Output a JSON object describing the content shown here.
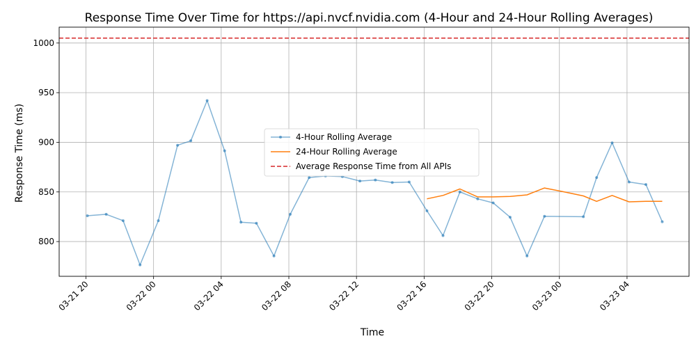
{
  "chart_data": {
    "type": "line",
    "title": "Response Time Over Time for https://api.nvcf.nvidia.com (4-Hour and 24-Hour Rolling Averages)",
    "xlabel": "Time",
    "ylabel": "Response Time (ms)",
    "xlim": [
      "2025-03-21 18:25",
      "2025-03-23 07:40"
    ],
    "ylim": [
      765,
      1016
    ],
    "x_ticks": [
      {
        "x": "2025-03-21 20:00",
        "label": "03-21 20"
      },
      {
        "x": "2025-03-22 00:00",
        "label": "03-22 00"
      },
      {
        "x": "2025-03-22 04:00",
        "label": "03-22 04"
      },
      {
        "x": "2025-03-22 08:00",
        "label": "03-22 08"
      },
      {
        "x": "2025-03-22 12:00",
        "label": "03-22 12"
      },
      {
        "x": "2025-03-22 16:00",
        "label": "03-22 16"
      },
      {
        "x": "2025-03-22 20:00",
        "label": "03-22 20"
      },
      {
        "x": "2025-03-23 00:00",
        "label": "03-23 00"
      },
      {
        "x": "2025-03-23 04:00",
        "label": "03-23 04"
      }
    ],
    "y_ticks": [
      800,
      850,
      900,
      950,
      1000
    ],
    "grid": true,
    "legend_position": "center",
    "series": [
      {
        "name": "4-Hour Rolling Average",
        "color": "#1f77b4",
        "marker": "dot",
        "points": [
          {
            "x": "2025-03-21 20:05",
            "y": 826
          },
          {
            "x": "2025-03-21 21:12",
            "y": 827.5
          },
          {
            "x": "2025-03-21 22:12",
            "y": 821
          },
          {
            "x": "2025-03-21 23:12",
            "y": 776.5
          },
          {
            "x": "2025-03-22 00:17",
            "y": 821
          },
          {
            "x": "2025-03-22 01:25",
            "y": 897
          },
          {
            "x": "2025-03-22 02:12",
            "y": 901.5
          },
          {
            "x": "2025-03-22 03:10",
            "y": 942
          },
          {
            "x": "2025-03-22 04:12",
            "y": 891.5
          },
          {
            "x": "2025-03-22 05:10",
            "y": 819.5
          },
          {
            "x": "2025-03-22 06:05",
            "y": 818.5
          },
          {
            "x": "2025-03-22 07:07",
            "y": 785.5
          },
          {
            "x": "2025-03-22 08:05",
            "y": 827.5
          },
          {
            "x": "2025-03-22 09:12",
            "y": 864.5
          },
          {
            "x": "2025-03-22 10:10",
            "y": 866
          },
          {
            "x": "2025-03-22 11:10",
            "y": 865.5
          },
          {
            "x": "2025-03-22 12:12",
            "y": 861
          },
          {
            "x": "2025-03-22 13:07",
            "y": 862
          },
          {
            "x": "2025-03-22 14:07",
            "y": 859.5
          },
          {
            "x": "2025-03-22 15:07",
            "y": 860
          },
          {
            "x": "2025-03-22 16:10",
            "y": 831
          },
          {
            "x": "2025-03-22 17:07",
            "y": 806
          },
          {
            "x": "2025-03-22 18:07",
            "y": 850
          },
          {
            "x": "2025-03-22 19:10",
            "y": 843
          },
          {
            "x": "2025-03-22 20:05",
            "y": 839
          },
          {
            "x": "2025-03-22 21:05",
            "y": 824.5
          },
          {
            "x": "2025-03-22 22:05",
            "y": 785.5
          },
          {
            "x": "2025-03-22 23:07",
            "y": 825.5
          },
          {
            "x": "2025-03-23 01:25",
            "y": 825
          },
          {
            "x": "2025-03-23 02:12",
            "y": 864.5
          },
          {
            "x": "2025-03-23 03:07",
            "y": 899.5
          },
          {
            "x": "2025-03-23 04:07",
            "y": 860
          },
          {
            "x": "2025-03-23 05:07",
            "y": 857.5
          },
          {
            "x": "2025-03-23 06:05",
            "y": 820
          }
        ]
      },
      {
        "name": "24-Hour Rolling Average",
        "color": "#ff7f0e",
        "marker": "none",
        "points": [
          {
            "x": "2025-03-22 16:10",
            "y": 843
          },
          {
            "x": "2025-03-22 17:07",
            "y": 846.5
          },
          {
            "x": "2025-03-22 18:07",
            "y": 853
          },
          {
            "x": "2025-03-22 19:10",
            "y": 845
          },
          {
            "x": "2025-03-22 20:05",
            "y": 845
          },
          {
            "x": "2025-03-22 21:05",
            "y": 845.5
          },
          {
            "x": "2025-03-22 22:05",
            "y": 847
          },
          {
            "x": "2025-03-22 23:07",
            "y": 854
          },
          {
            "x": "2025-03-23 00:10",
            "y": 850.5
          },
          {
            "x": "2025-03-23 01:25",
            "y": 846
          },
          {
            "x": "2025-03-23 02:12",
            "y": 840.5
          },
          {
            "x": "2025-03-23 03:07",
            "y": 846.5
          },
          {
            "x": "2025-03-23 04:07",
            "y": 840
          },
          {
            "x": "2025-03-23 05:07",
            "y": 840.5
          },
          {
            "x": "2025-03-23 06:05",
            "y": 840.5
          }
        ]
      }
    ],
    "reference_lines": [
      {
        "name": "Average Response Time from All APIs",
        "y": 1005,
        "color": "#d62728",
        "style": "dashed"
      }
    ]
  }
}
